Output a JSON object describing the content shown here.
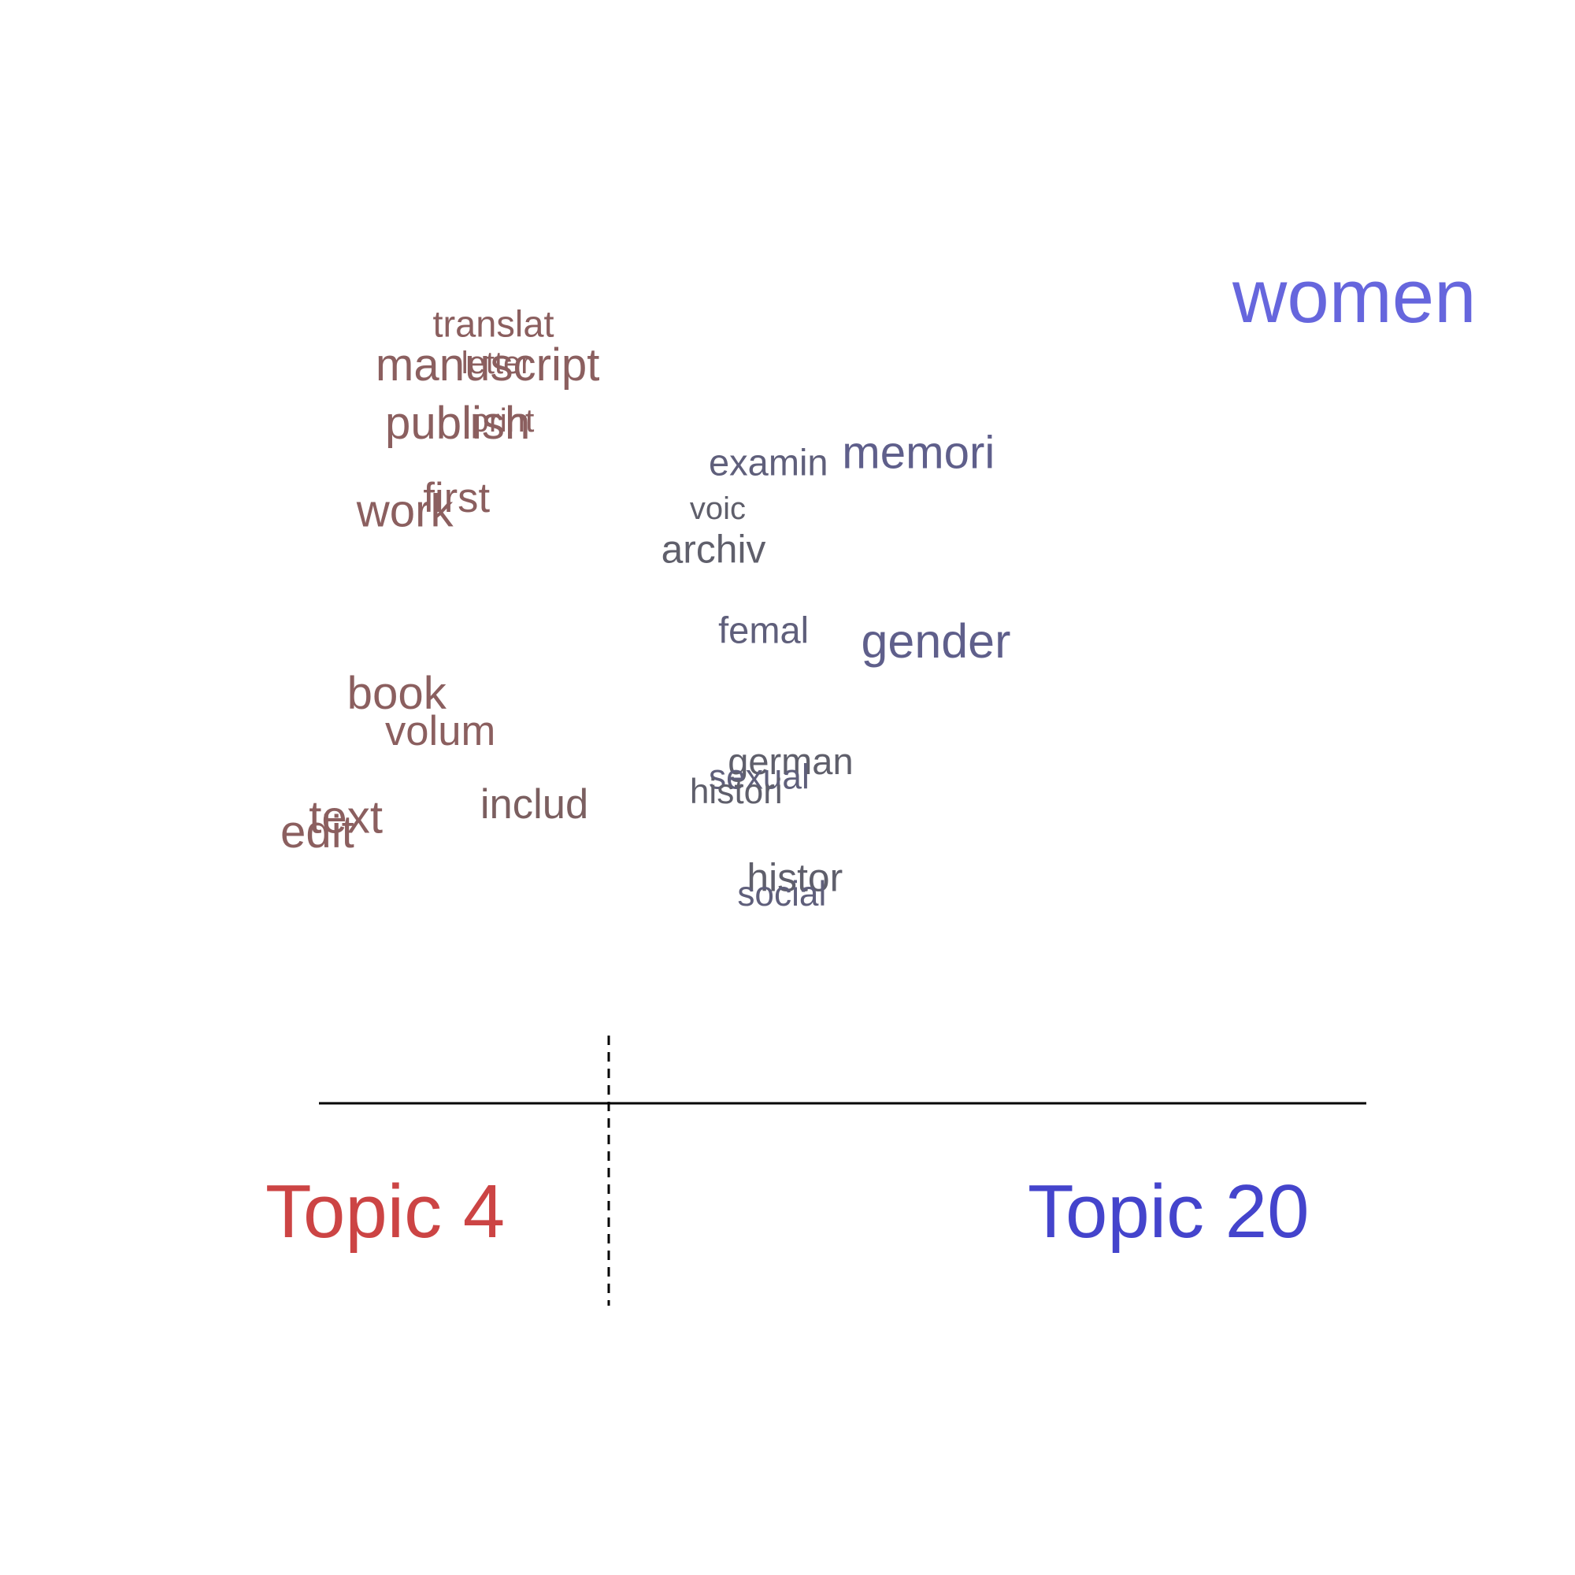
{
  "chart_data": {
    "type": "scatter",
    "subtype": "topic comparison word plot",
    "title": "",
    "xlabel": "",
    "ylabel": "",
    "colors": {
      "topic_a": "#cc4444",
      "topic_b": "#4444cc",
      "words_topic_a": "#8b5f5f",
      "words_mixed": "#5f5f6b",
      "words_topic_b": "#5f5f8b",
      "women": "#6666dd"
    },
    "topics": [
      {
        "label": "Topic 4",
        "color": "#cc4444"
      },
      {
        "label": "Topic 20",
        "color": "#4444cc"
      }
    ],
    "words": [
      {
        "word": "translat",
        "side": 0.16,
        "rank": 0.9,
        "weight": 0.3,
        "color": "#8b5f5f"
      },
      {
        "word": "manuscript",
        "side": 0.1,
        "rank": 0.84,
        "weight": 0.46,
        "color": "#8b5f5f"
      },
      {
        "word": "letter",
        "side": 0.19,
        "rank": 0.85,
        "weight": 0.2,
        "color": "#8b5f5f"
      },
      {
        "word": "publish",
        "side": 0.11,
        "rank": 0.76,
        "weight": 0.46,
        "color": "#8b5f5f"
      },
      {
        "word": "print",
        "side": 0.2,
        "rank": 0.77,
        "weight": 0.22,
        "color": "#8b5f5f"
      },
      {
        "word": "first",
        "side": 0.15,
        "rank": 0.66,
        "weight": 0.38,
        "color": "#8b5f5f"
      },
      {
        "word": "work",
        "side": 0.08,
        "rank": 0.64,
        "weight": 0.46,
        "color": "#8b5f5f"
      },
      {
        "word": "book",
        "side": 0.07,
        "rank": 0.39,
        "weight": 0.46,
        "color": "#8b5f5f"
      },
      {
        "word": "volum",
        "side": 0.11,
        "rank": 0.34,
        "weight": 0.38,
        "color": "#8b5f5f"
      },
      {
        "word": "includ",
        "side": 0.21,
        "rank": 0.24,
        "weight": 0.38,
        "color": "#7b5f60"
      },
      {
        "word": "text",
        "side": 0.03,
        "rank": 0.22,
        "weight": 0.46,
        "color": "#8b5f5f"
      },
      {
        "word": "edit",
        "side": 0.0,
        "rank": 0.2,
        "weight": 0.46,
        "color": "#8b5f5f"
      },
      {
        "word": "archiv",
        "side": 0.4,
        "rank": 0.59,
        "weight": 0.34,
        "color": "#5f5f6b"
      },
      {
        "word": "examin",
        "side": 0.45,
        "rank": 0.71,
        "weight": 0.3,
        "color": "#5f5f7b"
      },
      {
        "word": "voic",
        "side": 0.43,
        "rank": 0.65,
        "weight": 0.2,
        "color": "#5f5f6b"
      },
      {
        "word": "memori",
        "side": 0.59,
        "rank": 0.72,
        "weight": 0.46,
        "color": "#5f5f8b"
      },
      {
        "word": "femal",
        "side": 0.46,
        "rank": 0.48,
        "weight": 0.3,
        "color": "#5f5f7b"
      },
      {
        "word": "gender",
        "side": 0.61,
        "rank": 0.46,
        "weight": 0.5,
        "color": "#5f5f8b"
      },
      {
        "word": "german",
        "side": 0.47,
        "rank": 0.3,
        "weight": 0.3,
        "color": "#5f5f6b"
      },
      {
        "word": "sexual",
        "side": 0.45,
        "rank": 0.28,
        "weight": 0.26,
        "color": "#5f5f7b"
      },
      {
        "word": "histori",
        "side": 0.43,
        "rank": 0.26,
        "weight": 0.26,
        "color": "#5f5f6b"
      },
      {
        "word": "histor",
        "side": 0.49,
        "rank": 0.14,
        "weight": 0.34,
        "color": "#5f5f6b"
      },
      {
        "word": "social",
        "side": 0.48,
        "rank": 0.12,
        "weight": 0.26,
        "color": "#5f5f7b"
      },
      {
        "word": "women",
        "side": 1.0,
        "rank": 0.92,
        "weight": 1.0,
        "color": "#6666dd"
      }
    ]
  }
}
